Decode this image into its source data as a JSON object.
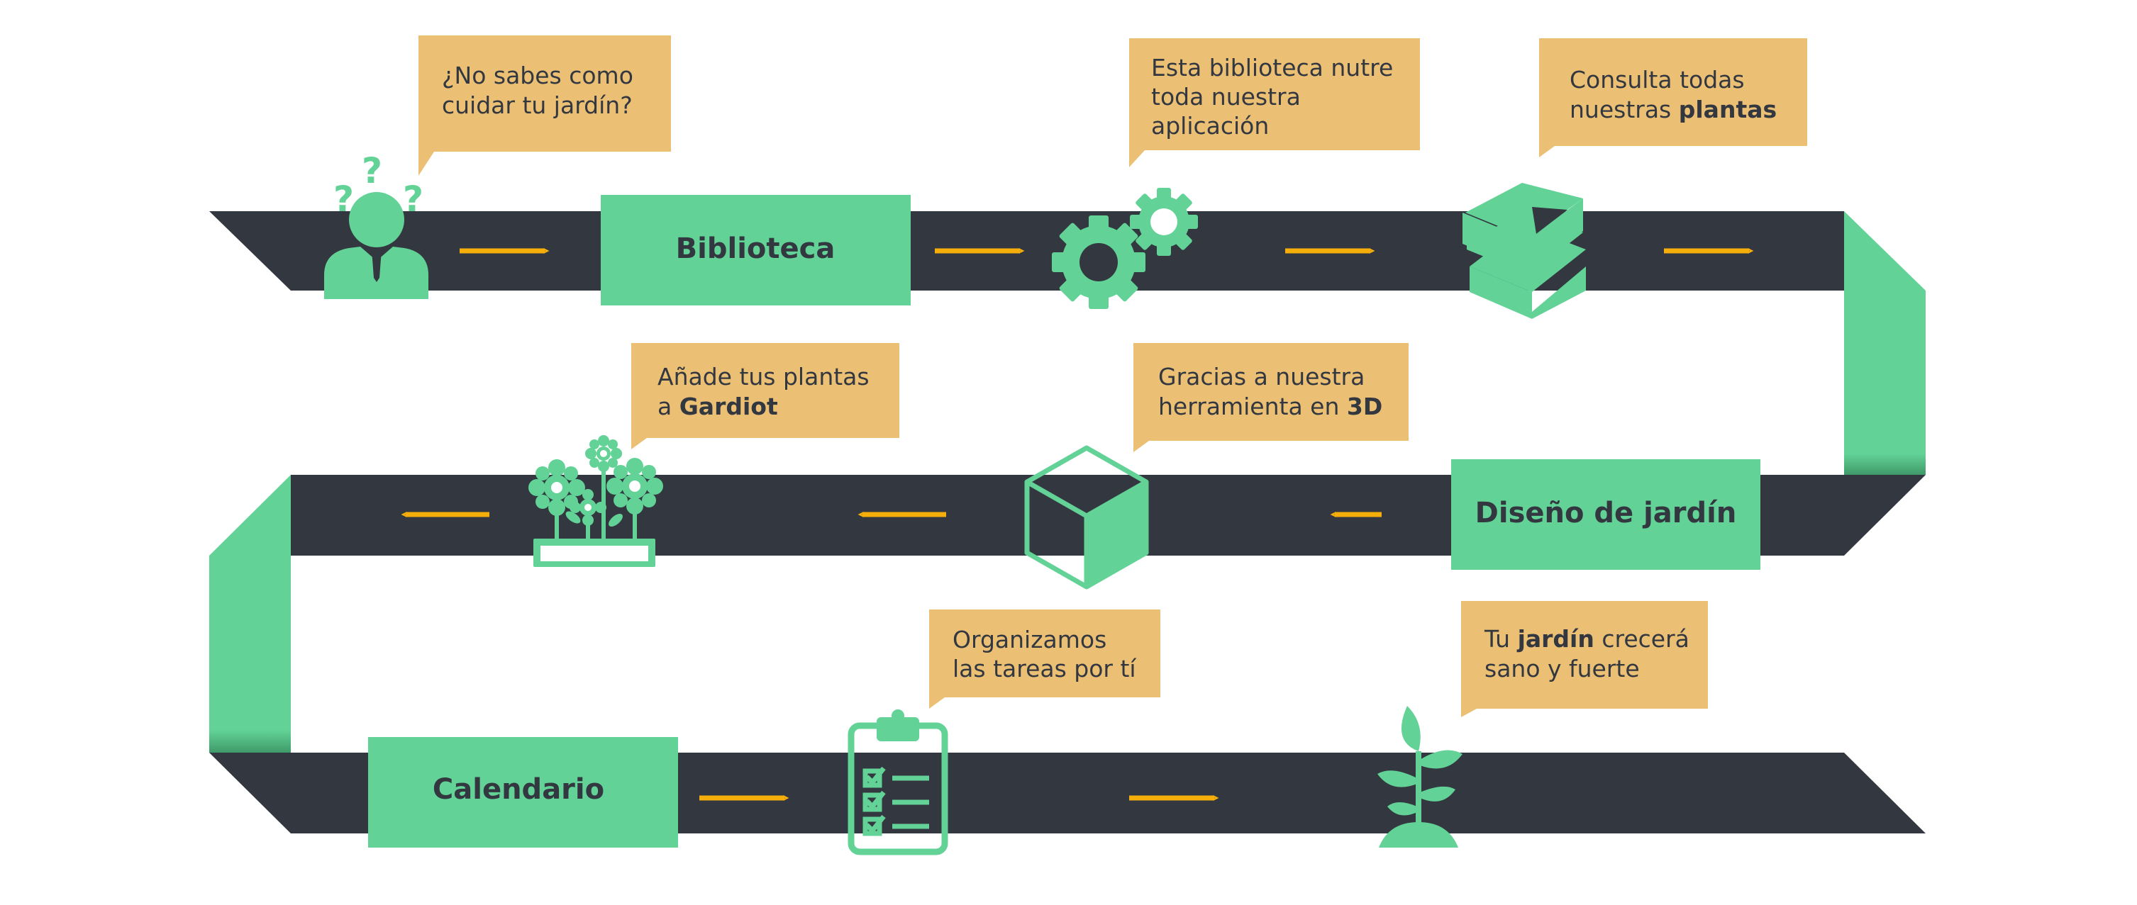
{
  "colors": {
    "road": "#323740",
    "green": "#62d296",
    "callout": "#ecc074",
    "arrow": "#f6ae0b",
    "text": "#323740"
  },
  "steps": {
    "biblioteca": "Biblioteca",
    "diseno": "Diseño de jardín",
    "calendario": "Calendario"
  },
  "callouts": {
    "c1": {
      "line1": "¿No sabes como",
      "line2": "cuidar tu jardín?"
    },
    "c2": {
      "line1": "Esta biblioteca nutre",
      "line2": "toda nuestra",
      "line3": "aplicación"
    },
    "c3": {
      "line1": "Consulta todas",
      "line2_a": "nuestras ",
      "line2_b": "plantas"
    },
    "c4": {
      "line1": "Añade tus plantas",
      "line2_a": "a ",
      "line2_b": "Gardiot"
    },
    "c5": {
      "line1": "Gracias a nuestra",
      "line2_a": "herramienta en ",
      "line2_b": "3D"
    },
    "c6": {
      "line1": "Organizamos",
      "line2": "las tareas por tí"
    },
    "c7": {
      "line1_a": "Tu ",
      "line1_b": "jardín",
      "line1_c": " crecerá",
      "line2": "sano y fuerte"
    }
  },
  "icons": {
    "confused_person": "confused-person-icon",
    "gears": "gears-icon",
    "books": "books-icon",
    "cube": "cube-3d-icon",
    "flowers": "flower-pot-icon",
    "clipboard": "clipboard-checklist-icon",
    "sprout": "sprout-icon"
  }
}
